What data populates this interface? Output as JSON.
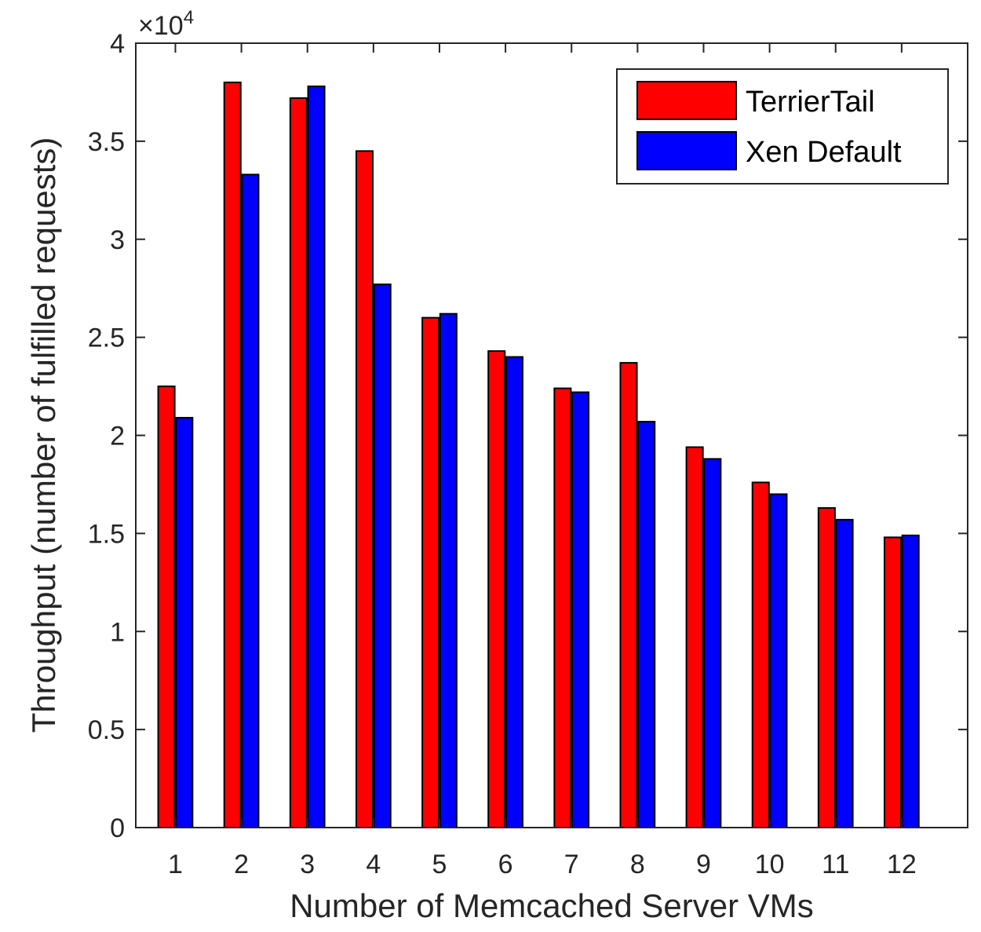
{
  "chart_data": {
    "type": "bar",
    "xlabel": "Number of Memcached Server VMs",
    "ylabel": "Throughput (number of fulfilled requests)",
    "y_multiplier": "×10",
    "y_multiplier_exponent": "4",
    "ylim": [
      0,
      40000
    ],
    "y_ticks": [
      0,
      5000,
      10000,
      15000,
      20000,
      25000,
      30000,
      35000,
      40000
    ],
    "y_tick_labels": [
      "0",
      "0.5",
      "1",
      "1.5",
      "2",
      "2.5",
      "3",
      "3.5",
      "4"
    ],
    "categories": [
      "1",
      "2",
      "3",
      "4",
      "5",
      "6",
      "7",
      "8",
      "9",
      "10",
      "11",
      "12"
    ],
    "x_range": [
      0.4,
      13.0
    ],
    "legend_position": "top-right",
    "grid": false,
    "series": [
      {
        "name": "TerrierTail",
        "color": "#ff0000",
        "values": [
          22500,
          38000,
          37200,
          34500,
          26000,
          24300,
          22400,
          23700,
          19400,
          17600,
          16300,
          14800
        ]
      },
      {
        "name": "Xen Default",
        "color": "#0000ff",
        "values": [
          20900,
          33300,
          37800,
          27700,
          26200,
          24000,
          22200,
          20700,
          18800,
          17000,
          15700,
          14900
        ]
      }
    ]
  }
}
